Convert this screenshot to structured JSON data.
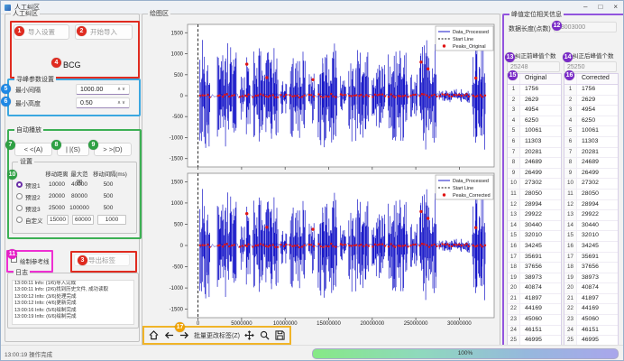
{
  "window": {
    "title": "人工纠区",
    "minimize": "–",
    "maximize": "□",
    "close": "×"
  },
  "left_panel": {
    "group_title": "人工纠区",
    "import_settings_button": "导入设置",
    "start_import_button": "开始导入",
    "signal_type_label": "BCG",
    "peak_params": {
      "group_title": "寻峰参数设置",
      "min_interval_label": "最小间隔",
      "min_interval_value": "1000.00",
      "min_height_label": "最小高度",
      "min_height_value": "0.50"
    },
    "autoplay": {
      "group_title": "自动播放",
      "back_button": "< <(A)",
      "pause_button": "| |(S)",
      "forward_button": "> >(D)",
      "settings": {
        "group_title": "设置",
        "headers": [
          "移动距离",
          "最大范围",
          "移动间隔(ms)"
        ],
        "presets": [
          {
            "label": "预设1",
            "selected": true,
            "editable": false,
            "values": [
              "10000",
              "40000",
              "500"
            ]
          },
          {
            "label": "预设2",
            "selected": false,
            "editable": false,
            "values": [
              "20000",
              "80000",
              "500"
            ]
          },
          {
            "label": "预设3",
            "selected": false,
            "editable": false,
            "values": [
              "25000",
              "100000",
              "500"
            ]
          },
          {
            "label": "自定义",
            "selected": false,
            "editable": true,
            "values": [
              "15000",
              "60000",
              "1000"
            ]
          }
        ]
      }
    },
    "reference_line_checkbox": "绘制参考线",
    "export_labels_button": "导出标签",
    "log": {
      "group_title": "日志",
      "entries": [
        "13:00:11 Info: (1/6)导入完成",
        "13:00:11 Info: (2/6)找到历史文件, 成功读取",
        "13:00:12 Info: (3/6)处理完成",
        "13:00:12 Info: (4/6)更新完成",
        "13:00:16 Info: (5/6)绘制完成",
        "13:00:19 Info: (6/6)绘制完成"
      ]
    }
  },
  "chart_panel": {
    "group_title": "绘图区",
    "toolbar": {
      "batch_edit_label": "批量更改标签(Z)"
    }
  },
  "right_panel": {
    "group_title": "峰值定位相关信息",
    "data_length_label": "数据长度(点数)",
    "data_length_value": "33003000",
    "before_label": "纠正前峰值个数",
    "after_label": "纠正后峰值个数",
    "before_count": "25248",
    "after_count": "25250",
    "tables": [
      {
        "header": "Original",
        "values": [
          1756,
          2629,
          4954,
          6250,
          10061,
          11303,
          20281,
          24689,
          26499,
          27302,
          28050,
          28994,
          29922,
          30440,
          32010,
          34245,
          35691,
          37656,
          38973,
          40874,
          41897,
          44169,
          45060,
          46151,
          46995,
          47878,
          49054
        ]
      },
      {
        "header": "Corrected",
        "values": [
          1756,
          2629,
          4954,
          6250,
          10061,
          11303,
          20281,
          24689,
          26499,
          27302,
          28050,
          28994,
          29922,
          30440,
          32010,
          34245,
          35691,
          37656,
          38973,
          40874,
          41897,
          44169,
          45060,
          46151,
          46995,
          47878,
          49054
        ]
      }
    ]
  },
  "status_bar": {
    "message": "13:00:19 操作完成",
    "progress_label": "100%"
  },
  "annotations": [
    {
      "num": "1",
      "color": "#e02b20"
    },
    {
      "num": "2",
      "color": "#e02b20"
    },
    {
      "num": "3",
      "color": "#e02b20"
    },
    {
      "num": "4",
      "color": "#e02b20"
    },
    {
      "num": "5",
      "color": "#1e88e5"
    },
    {
      "num": "6",
      "color": "#1e88e5"
    },
    {
      "num": "7",
      "color": "#2ea043"
    },
    {
      "num": "8",
      "color": "#2ea043"
    },
    {
      "num": "9",
      "color": "#2ea043"
    },
    {
      "num": "10",
      "color": "#2ea043"
    },
    {
      "num": "11",
      "color": "#e620c8"
    },
    {
      "num": "12",
      "color": "#7a2bc8"
    },
    {
      "num": "13",
      "color": "#7a2bc8"
    },
    {
      "num": "14",
      "color": "#7a2bc8"
    },
    {
      "num": "15",
      "color": "#7a2bc8"
    },
    {
      "num": "16",
      "color": "#7a2bc8"
    },
    {
      "num": "17",
      "color": "#f0a202"
    }
  ],
  "chart_data": [
    {
      "type": "line",
      "title": "",
      "xlabel": "",
      "ylabel": "",
      "xlim": [
        -1200000,
        34000000
      ],
      "ylim": [
        -1700,
        1700
      ],
      "x_ticks": [
        0,
        5000000,
        10000000,
        15000000,
        20000000,
        25000000,
        30000000
      ],
      "y_ticks": [
        -1500,
        -1000,
        -500,
        0,
        500,
        1000,
        1500
      ],
      "x_tick_labels_visible": false,
      "legend": [
        "Data_Processed",
        "Start Line",
        "Peaks_Original"
      ],
      "legend_position": "upper right",
      "colors": {
        "data": "#1717c8",
        "start_line": "#111111",
        "peaks": "#e01414"
      },
      "start_line_x": 0,
      "signal_bursts": [
        [
          200000,
          1400000,
          1350
        ],
        [
          2200000,
          4400000,
          1250
        ],
        [
          4800000,
          5400000,
          650
        ],
        [
          5500000,
          6000000,
          950
        ],
        [
          6300000,
          9200000,
          1150
        ],
        [
          9500000,
          10200000,
          450
        ],
        [
          10500000,
          12300000,
          1050
        ],
        [
          12700000,
          13400000,
          700
        ],
        [
          13800000,
          16000000,
          1250
        ],
        [
          16300000,
          17000000,
          520
        ],
        [
          17300000,
          19600000,
          1100
        ],
        [
          20000000,
          21500000,
          850
        ],
        [
          21800000,
          24100000,
          1100
        ],
        [
          24400000,
          25200000,
          600
        ],
        [
          25400000,
          27400000,
          1350
        ],
        [
          27700000,
          31200000,
          170
        ],
        [
          31500000,
          33000000,
          1400
        ]
      ],
      "peaks_band": {
        "y_center": 0,
        "y_jitter": 42,
        "x_step": 280000
      },
      "peak_outliers": [
        [
          5600000,
          750
        ],
        [
          7900000,
          430
        ],
        [
          13200000,
          380
        ],
        [
          25600000,
          800
        ],
        [
          26400000,
          640
        ],
        [
          31900000,
          420
        ]
      ]
    },
    {
      "type": "line",
      "title": "",
      "xlabel": "",
      "ylabel": "",
      "xlim": [
        -1200000,
        34000000
      ],
      "ylim": [
        -1700,
        1700
      ],
      "x_ticks": [
        0,
        5000000,
        10000000,
        15000000,
        20000000,
        25000000,
        30000000
      ],
      "y_ticks": [
        -1500,
        -1000,
        -500,
        0,
        500,
        1000,
        1500
      ],
      "x_tick_labels_visible": true,
      "legend": [
        "Data_Processed",
        "Start Line",
        "Peaks_Corrected"
      ],
      "legend_position": "upper right",
      "colors": {
        "data": "#1717c8",
        "start_line": "#111111",
        "peaks": "#e01414"
      },
      "start_line_x": 0,
      "signal_bursts": [
        [
          200000,
          1400000,
          1350
        ],
        [
          2200000,
          4400000,
          1250
        ],
        [
          4800000,
          5400000,
          650
        ],
        [
          5500000,
          6000000,
          950
        ],
        [
          6300000,
          9200000,
          1150
        ],
        [
          9500000,
          10200000,
          450
        ],
        [
          10500000,
          12300000,
          1050
        ],
        [
          12700000,
          13400000,
          700
        ],
        [
          13800000,
          16000000,
          1250
        ],
        [
          16300000,
          17000000,
          520
        ],
        [
          17300000,
          19600000,
          1100
        ],
        [
          20000000,
          21500000,
          850
        ],
        [
          21800000,
          24100000,
          1100
        ],
        [
          24400000,
          25200000,
          600
        ],
        [
          25400000,
          27400000,
          1350
        ],
        [
          27700000,
          31200000,
          170
        ],
        [
          31500000,
          33000000,
          1400
        ]
      ],
      "peaks_band": {
        "y_center": 0,
        "y_jitter": 42,
        "x_step": 280000
      },
      "peak_outliers": [
        [
          5600000,
          750
        ],
        [
          7900000,
          430
        ],
        [
          13200000,
          380
        ],
        [
          25600000,
          800
        ],
        [
          26400000,
          640
        ],
        [
          31900000,
          420
        ]
      ]
    }
  ]
}
